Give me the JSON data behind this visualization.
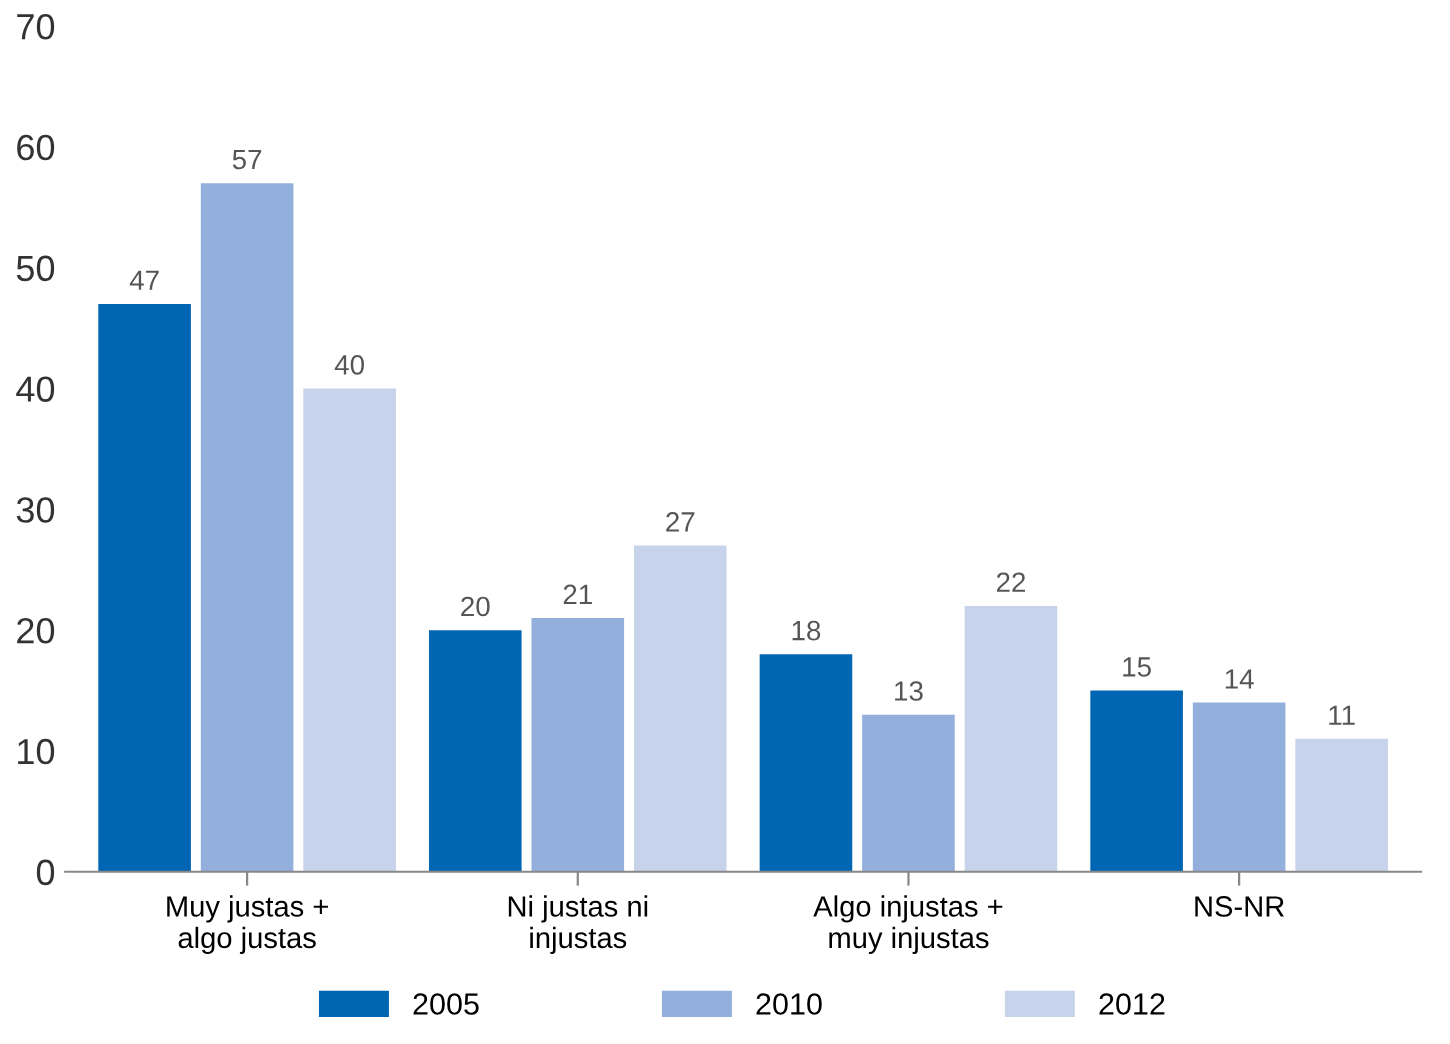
{
  "chart_data": {
    "type": "bar",
    "categories": [
      "Muy justas +\nalgo justas",
      "Ni justas ni\ninjustas",
      "Algo injustas +\nmuy injustas",
      "NS-NR"
    ],
    "series": [
      {
        "name": "2005",
        "color": "#0065b2",
        "values": [
          47,
          20,
          18,
          15
        ]
      },
      {
        "name": "2010",
        "color": "#93afdc",
        "values": [
          57,
          21,
          13,
          14
        ]
      },
      {
        "name": "2012",
        "color": "#c7d3eb",
        "values": [
          40,
          27,
          22,
          11
        ]
      }
    ],
    "ylim": [
      0,
      70
    ],
    "yticks": [
      0,
      10,
      20,
      30,
      40,
      50,
      60,
      70
    ],
    "grid": false,
    "legend": "bottom",
    "data_labels": true
  }
}
